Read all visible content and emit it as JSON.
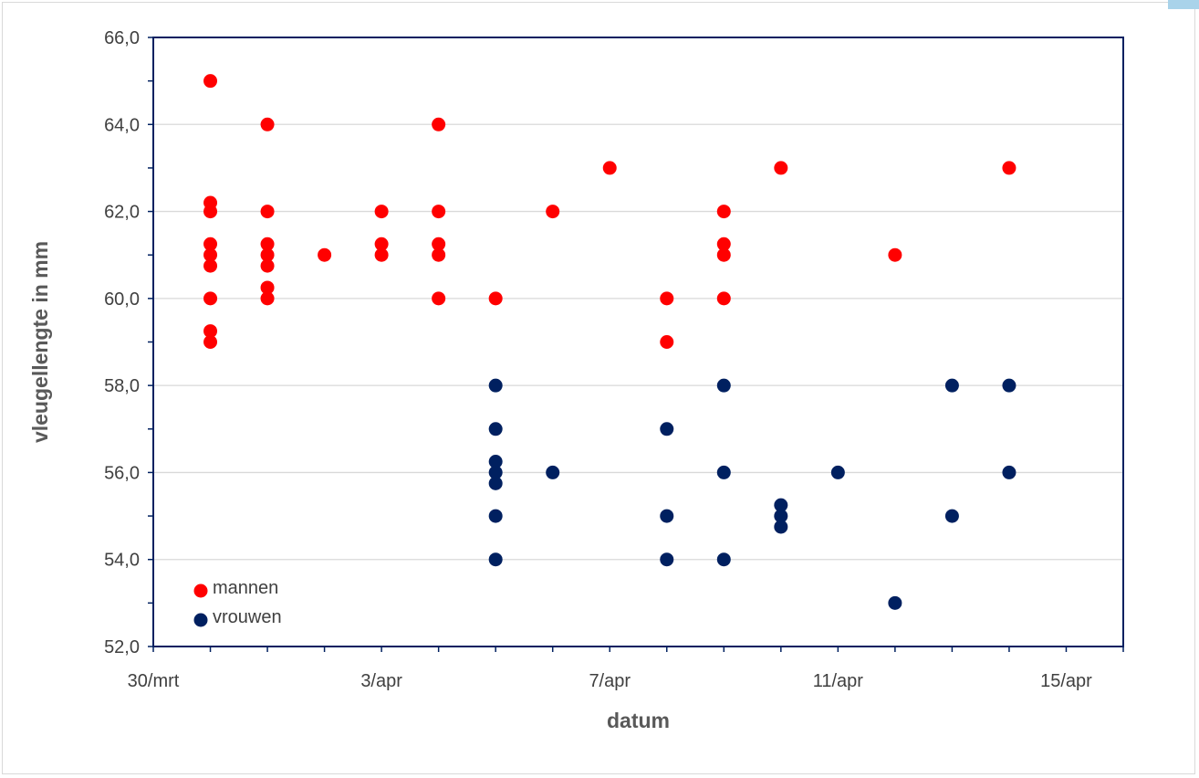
{
  "chart_data": {
    "type": "scatter",
    "xlabel": "datum",
    "ylabel": "vleugellengte in mm",
    "xlim": [
      "2023-03-30",
      "2023-04-16"
    ],
    "ylim": [
      52,
      66
    ],
    "x_ticks": [
      "30/mrt",
      "3/apr",
      "7/apr",
      "11/apr",
      "15/apr"
    ],
    "y_ticks": [
      "52,0",
      "54,0",
      "56,0",
      "58,0",
      "60,0",
      "62,0",
      "64,0",
      "66,0"
    ],
    "grid": true,
    "legend_position": "bottom-left",
    "series": [
      {
        "name": "mannen",
        "color": "#ff0000",
        "points": [
          [
            "2023-03-31",
            65
          ],
          [
            "2023-03-31",
            62.2
          ],
          [
            "2023-03-31",
            62
          ],
          [
            "2023-03-31",
            61.25
          ],
          [
            "2023-03-31",
            61
          ],
          [
            "2023-03-31",
            60.75
          ],
          [
            "2023-03-31",
            60
          ],
          [
            "2023-03-31",
            59.25
          ],
          [
            "2023-03-31",
            59
          ],
          [
            "2023-04-01",
            64
          ],
          [
            "2023-04-01",
            62
          ],
          [
            "2023-04-01",
            61.25
          ],
          [
            "2023-04-01",
            61
          ],
          [
            "2023-04-01",
            60.75
          ],
          [
            "2023-04-01",
            60.25
          ],
          [
            "2023-04-01",
            60
          ],
          [
            "2023-04-02",
            61
          ],
          [
            "2023-04-03",
            62
          ],
          [
            "2023-04-03",
            61.25
          ],
          [
            "2023-04-03",
            61
          ],
          [
            "2023-04-04",
            64
          ],
          [
            "2023-04-04",
            62
          ],
          [
            "2023-04-04",
            61.25
          ],
          [
            "2023-04-04",
            61
          ],
          [
            "2023-04-04",
            60
          ],
          [
            "2023-04-05",
            60
          ],
          [
            "2023-04-06",
            62
          ],
          [
            "2023-04-07",
            63
          ],
          [
            "2023-04-08",
            60
          ],
          [
            "2023-04-08",
            59
          ],
          [
            "2023-04-09",
            62
          ],
          [
            "2023-04-09",
            61.25
          ],
          [
            "2023-04-09",
            61
          ],
          [
            "2023-04-09",
            60
          ],
          [
            "2023-04-10",
            63
          ],
          [
            "2023-04-12",
            61
          ],
          [
            "2023-04-14",
            63
          ]
        ]
      },
      {
        "name": "vrouwen",
        "color": "#002060",
        "points": [
          [
            "2023-04-05",
            58
          ],
          [
            "2023-04-05",
            57
          ],
          [
            "2023-04-05",
            56.25
          ],
          [
            "2023-04-05",
            56
          ],
          [
            "2023-04-05",
            55.75
          ],
          [
            "2023-04-05",
            55
          ],
          [
            "2023-04-05",
            54
          ],
          [
            "2023-04-06",
            56
          ],
          [
            "2023-04-08",
            57
          ],
          [
            "2023-04-08",
            55
          ],
          [
            "2023-04-08",
            54
          ],
          [
            "2023-04-09",
            58
          ],
          [
            "2023-04-09",
            56
          ],
          [
            "2023-04-09",
            54
          ],
          [
            "2023-04-10",
            55.25
          ],
          [
            "2023-04-10",
            55
          ],
          [
            "2023-04-10",
            54.75
          ],
          [
            "2023-04-11",
            56
          ],
          [
            "2023-04-12",
            53
          ],
          [
            "2023-04-13",
            58
          ],
          [
            "2023-04-13",
            55
          ],
          [
            "2023-04-14",
            58
          ],
          [
            "2023-04-14",
            56
          ]
        ]
      }
    ]
  }
}
